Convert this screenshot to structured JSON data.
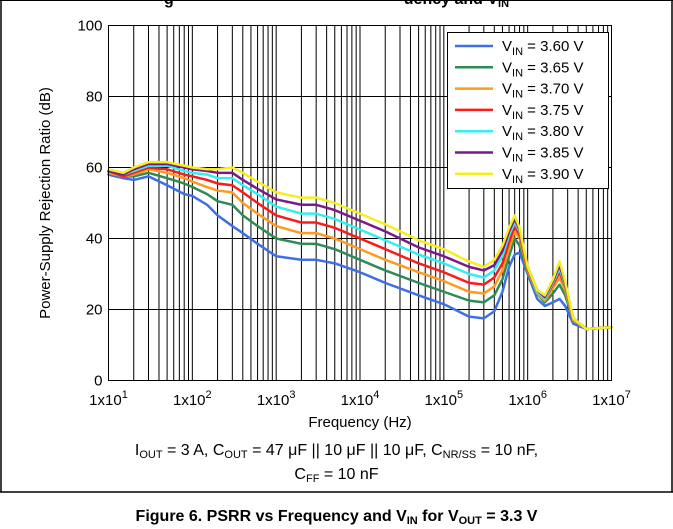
{
  "page_top_title": {
    "pre": "g",
    "mid": "uency and V",
    "sub": "IN"
  },
  "caption": {
    "line1": {
      "iout_sym": "I",
      "iout_sub": "OUT",
      "iout_val": " = 3 A, ",
      "cout_sym": "C",
      "cout_sub": "OUT",
      "cout_val": " = 47 μF || 10 μF || 10 μF, ",
      "cnr_sym": "C",
      "cnr_sub": "NR/SS",
      "cnr_val": " = 10 nF,"
    },
    "line2": {
      "cff_sym": "C",
      "cff_sub": "FF",
      "cff_val": " = 10 nF"
    }
  },
  "figure_title": {
    "pre": "Figure 6. PSRR vs Frequency and V",
    "sub1": "IN",
    "mid": " for V",
    "sub2": "OUT",
    "post": " = 3.3 V"
  },
  "chart_data": {
    "type": "line",
    "xscale": "log",
    "xlim": [
      10,
      10000000
    ],
    "ylim": [
      0,
      100
    ],
    "xlabel": "Frequency (Hz)",
    "ylabel": "Power-Supply Rejection Ratio (dB)",
    "x_ticks": [
      {
        "value": 10,
        "base": "1x10",
        "exp": "1"
      },
      {
        "value": 100,
        "base": "1x10",
        "exp": "2"
      },
      {
        "value": 1000,
        "base": "1x10",
        "exp": "3"
      },
      {
        "value": 10000,
        "base": "1x10",
        "exp": "4"
      },
      {
        "value": 100000,
        "base": "1x10",
        "exp": "5"
      },
      {
        "value": 1000000,
        "base": "1x10",
        "exp": "6"
      },
      {
        "value": 10000000,
        "base": "1x10",
        "exp": "7"
      }
    ],
    "y_ticks": [
      0,
      20,
      40,
      60,
      80,
      100
    ],
    "grid": true,
    "legend_position": "top-right",
    "x": [
      10,
      15,
      20,
      30,
      50,
      80,
      100,
      150,
      200,
      300,
      400,
      600,
      1000,
      2000,
      3000,
      5000,
      10000,
      20000,
      50000,
      100000,
      200000,
      300000,
      400000,
      500000,
      600000,
      700000,
      800000,
      1000000,
      1300000,
      1600000,
      2000000,
      2400000,
      2800000,
      3500000,
      5000000,
      10000000
    ],
    "series": [
      {
        "name_sym": "V",
        "name_sub": "IN",
        "name_val": " = 3.60 V",
        "color": "#3f6fe6",
        "values": [
          58,
          57,
          56.5,
          57.5,
          55,
          52.5,
          52,
          49.5,
          46.5,
          43.5,
          41.5,
          38.5,
          35,
          34,
          34,
          33,
          30.5,
          27.5,
          24,
          21.5,
          18,
          17.5,
          19.5,
          25,
          32,
          35.5,
          36,
          30,
          23,
          21,
          22,
          23,
          21,
          16,
          14.5,
          15
        ]
      },
      {
        "name_sym": "V",
        "name_sub": "IN",
        "name_val": " = 3.65 V",
        "color": "#2e8b57",
        "values": [
          58.5,
          57.5,
          57.5,
          58.5,
          57,
          55.5,
          54.5,
          52.5,
          50.5,
          49.5,
          46.5,
          43.5,
          40,
          38.5,
          38.5,
          37,
          34,
          31,
          27.5,
          25,
          22.5,
          22,
          24,
          28.5,
          35,
          40,
          38,
          30.5,
          24.5,
          22,
          24.5,
          27,
          24,
          17,
          14.5,
          15
        ]
      },
      {
        "name_sym": "V",
        "name_sub": "IN",
        "name_val": " = 3.70 V",
        "color": "#ff9a1f",
        "values": [
          58.5,
          57.5,
          58,
          59.5,
          58.5,
          57,
          56,
          54.5,
          53.5,
          53,
          50,
          47,
          43.5,
          41.5,
          41.5,
          40,
          37,
          34,
          30.5,
          28,
          25,
          24.5,
          26.5,
          31,
          37,
          42,
          40,
          31,
          24.5,
          22.5,
          26,
          29,
          25.5,
          17,
          14.5,
          15
        ]
      },
      {
        "name_sym": "V",
        "name_sub": "IN",
        "name_val": " = 3.75 V",
        "color": "#ff1a1a",
        "values": [
          59,
          57.5,
          58.5,
          60,
          59.5,
          58,
          57.5,
          56.5,
          55.5,
          55,
          53,
          50,
          46.5,
          44.5,
          44.5,
          43,
          40,
          37,
          33,
          30.5,
          27.5,
          27,
          29,
          33,
          39,
          43.5,
          41,
          31.5,
          25,
          23,
          27,
          30.5,
          26.5,
          17.5,
          14.5,
          15
        ]
      },
      {
        "name_sym": "V",
        "name_sub": "IN",
        "name_val": " = 3.80 V",
        "color": "#33eeee",
        "values": [
          59,
          58,
          59,
          60.5,
          60.5,
          59,
          58.5,
          58,
          57,
          57,
          55,
          52.5,
          49,
          47,
          47,
          45.5,
          42.5,
          39.5,
          35.5,
          33,
          30,
          29,
          31,
          35,
          41,
          44.5,
          42,
          32,
          25,
          23,
          27.5,
          31.5,
          27,
          17.5,
          14.5,
          15
        ]
      },
      {
        "name_sym": "V",
        "name_sub": "IN",
        "name_val": " = 3.85 V",
        "color": "#7a1a8a",
        "values": [
          59,
          58,
          59.5,
          61,
          61,
          60,
          59.5,
          59,
          58.5,
          58.5,
          56.5,
          54,
          51,
          49.5,
          49.5,
          48,
          45,
          42,
          37.5,
          35,
          32,
          31,
          32.5,
          36.5,
          42,
          45.5,
          42.5,
          32,
          25.5,
          23.5,
          28,
          32.5,
          27.5,
          17.5,
          14.5,
          15
        ]
      },
      {
        "name_sym": "V",
        "name_sub": "IN",
        "name_val": " = 3.90 V",
        "color": "#f5ef1f",
        "values": [
          59.5,
          58.5,
          60,
          61.5,
          61.5,
          60.5,
          60,
          59.5,
          59.5,
          60,
          58.5,
          56,
          53,
          51.5,
          51.5,
          50,
          47,
          44,
          39.5,
          37,
          33.5,
          32,
          34,
          38,
          43,
          46.5,
          43,
          32,
          25.5,
          24,
          28.5,
          33.5,
          28,
          17.5,
          14.5,
          15
        ]
      }
    ]
  }
}
